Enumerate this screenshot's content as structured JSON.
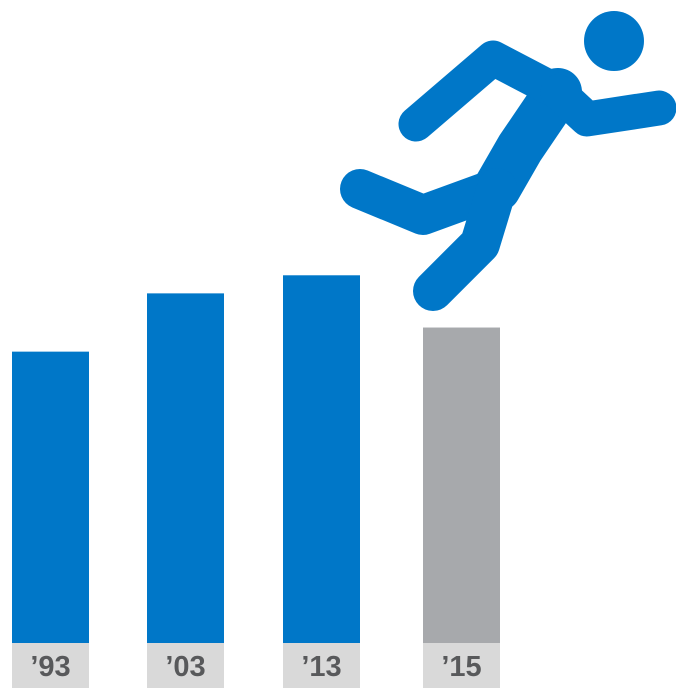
{
  "colors": {
    "past_bar": "#0077c8",
    "current_bar": "#a7a9ac",
    "figure": "#0077c8",
    "label_background": "#d9d9d9",
    "label_text": "#58595b"
  },
  "icon": "falling-person-icon",
  "chart_data": {
    "type": "bar",
    "categories": [
      "’93",
      "’03",
      "’13",
      "’15"
    ],
    "values": [
      290,
      348,
      366,
      314
    ],
    "highlight_index": 3,
    "title": "",
    "xlabel": "",
    "ylabel": "",
    "ylim": [
      0,
      640
    ],
    "grid": false,
    "legend": "none"
  }
}
